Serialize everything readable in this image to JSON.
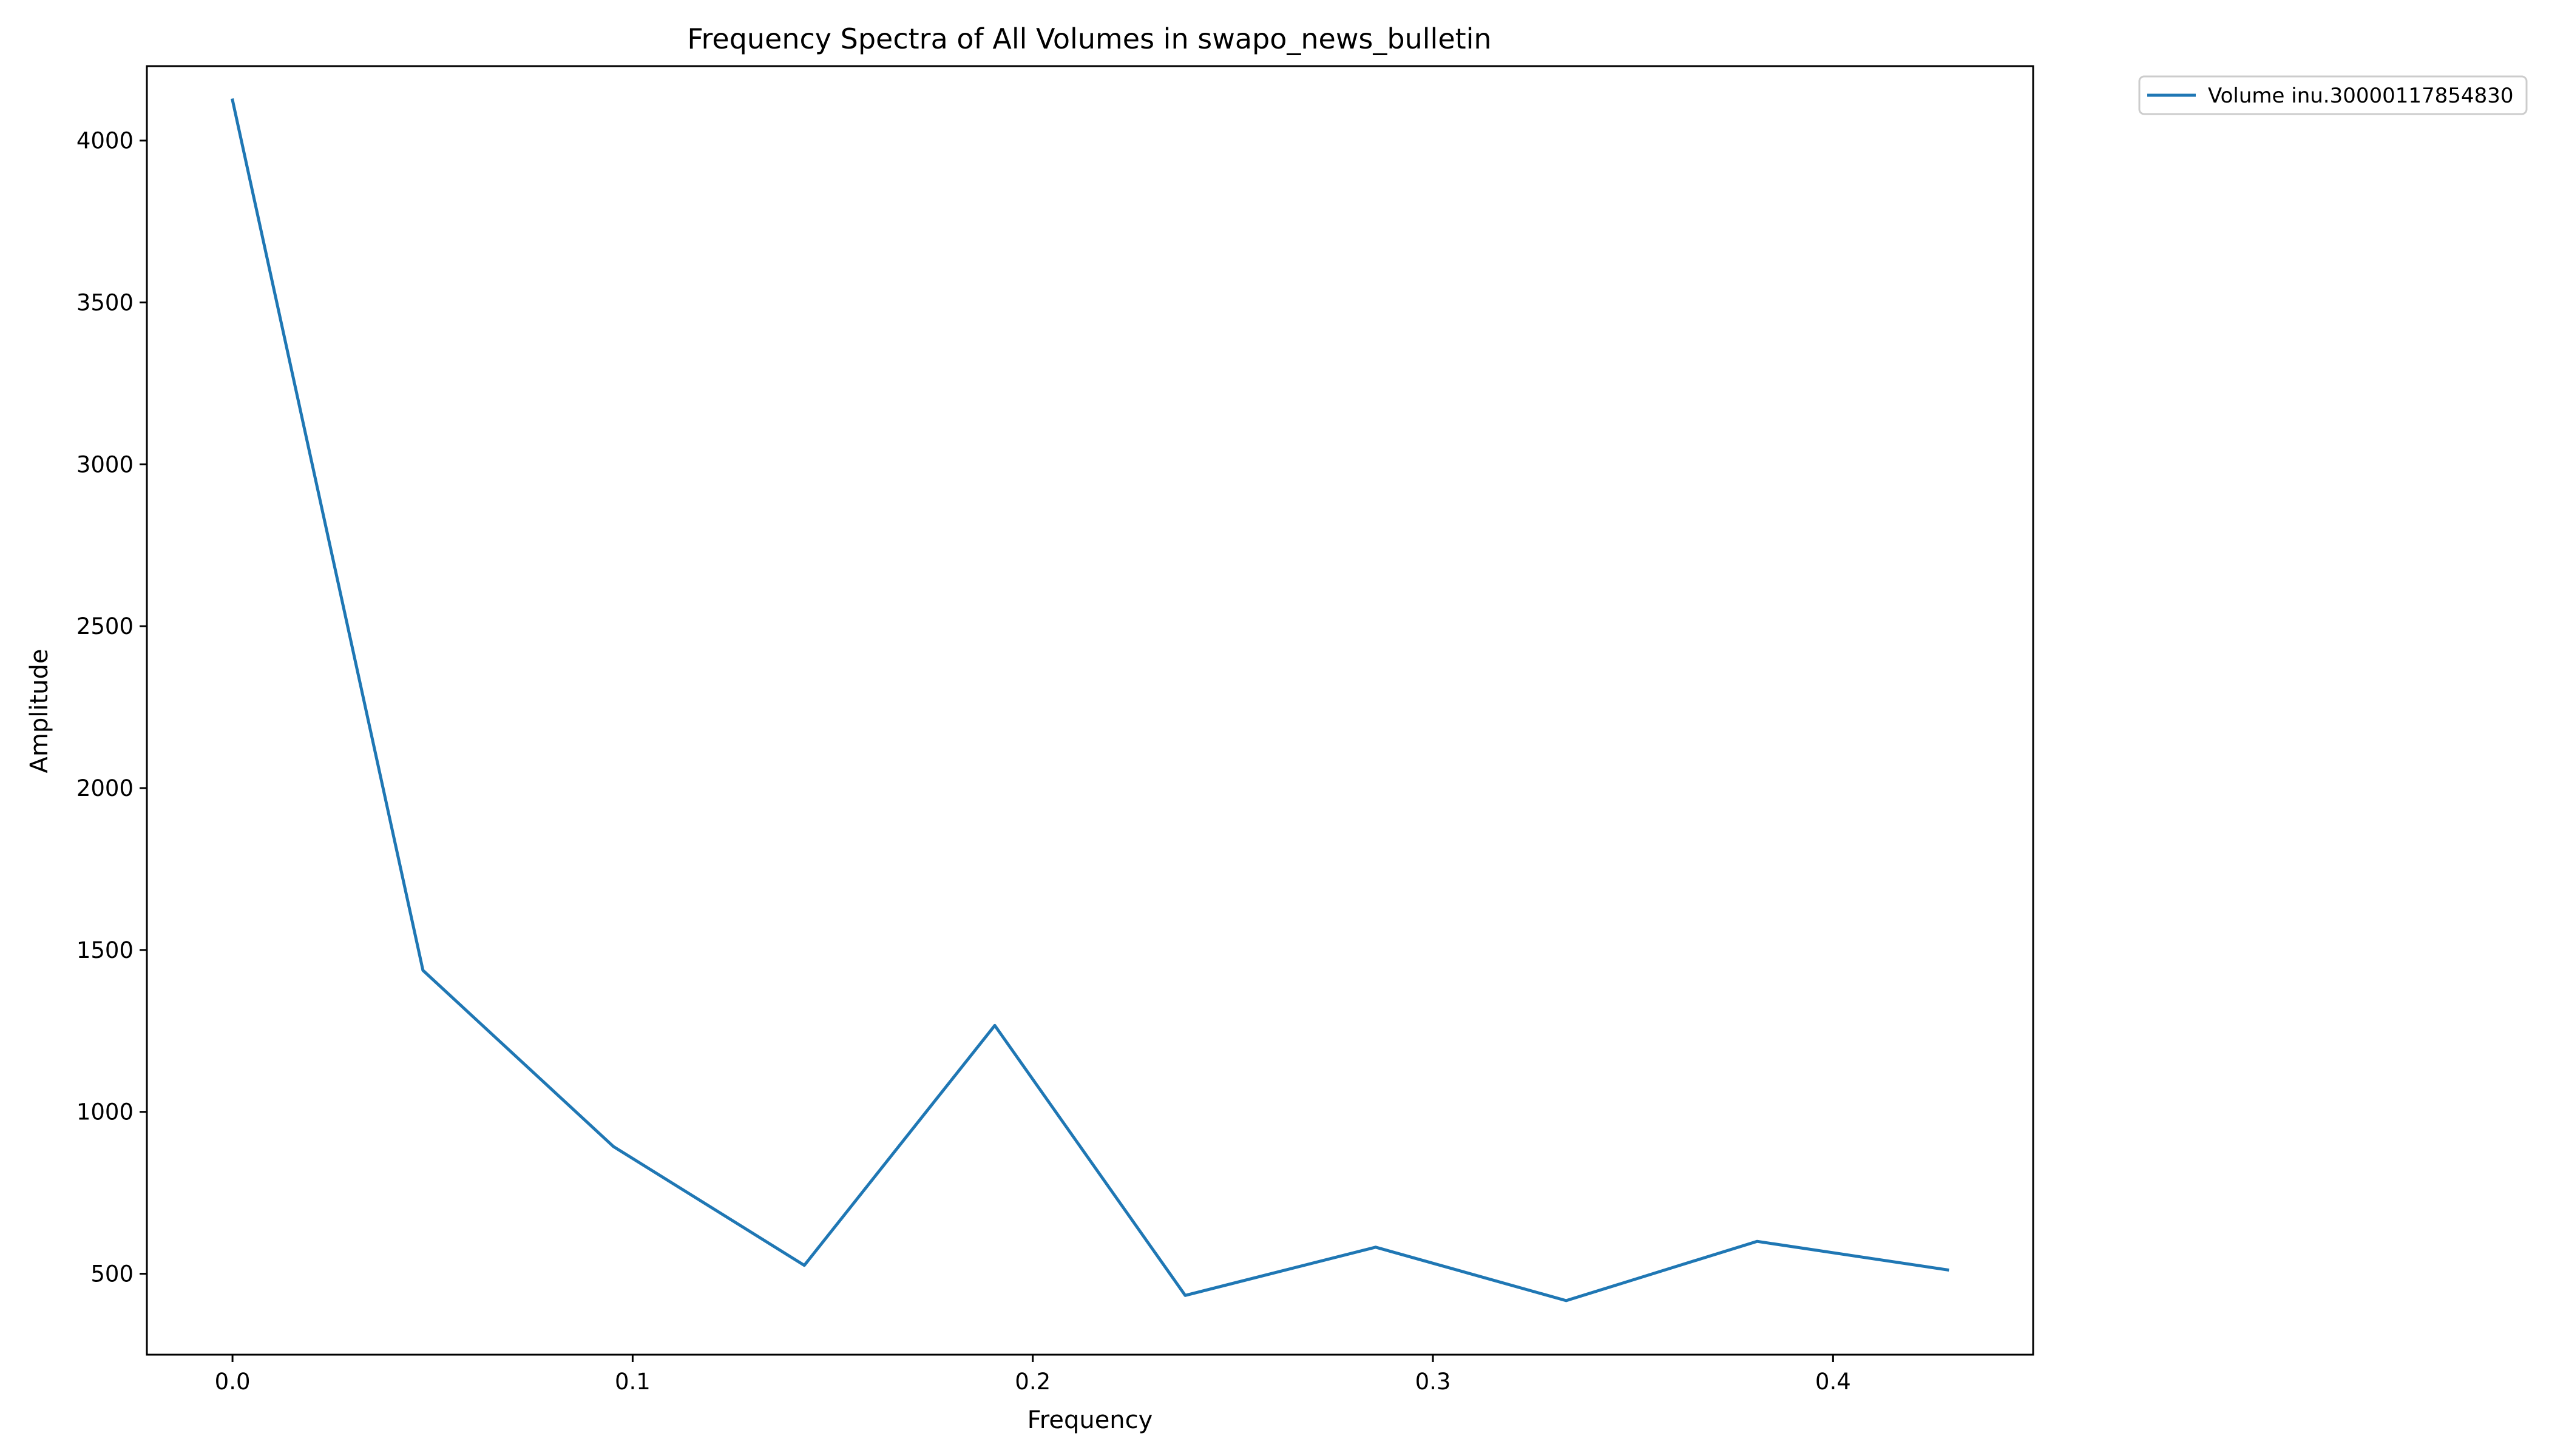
{
  "chart_data": {
    "type": "line",
    "title": "Frequency Spectra of All Volumes in swapo_news_bulletin",
    "xlabel": "Frequency",
    "ylabel": "Amplitude",
    "xlim": [
      -0.0214,
      0.45
    ],
    "ylim": [
      250,
      4230
    ],
    "xticks": [
      0.0,
      0.1,
      0.2,
      0.3,
      0.4
    ],
    "xtick_labels": [
      "0.0",
      "0.1",
      "0.2",
      "0.3",
      "0.4"
    ],
    "yticks": [
      500,
      1000,
      1500,
      2000,
      2500,
      3000,
      3500,
      4000
    ],
    "ytick_labels": [
      "500",
      "1000",
      "1500",
      "2000",
      "2500",
      "3000",
      "3500",
      "4000"
    ],
    "grid": false,
    "legend": "outside-top-right",
    "series": [
      {
        "name": "Volume inu.30000117854830",
        "color": "#1f77b4",
        "x": [
          0.0,
          0.0476,
          0.0952,
          0.1429,
          0.1905,
          0.2381,
          0.2857,
          0.3333,
          0.381,
          0.4286
        ],
        "y": [
          4125,
          1437,
          893,
          526,
          1267,
          433,
          582,
          417,
          600,
          512
        ]
      }
    ]
  }
}
